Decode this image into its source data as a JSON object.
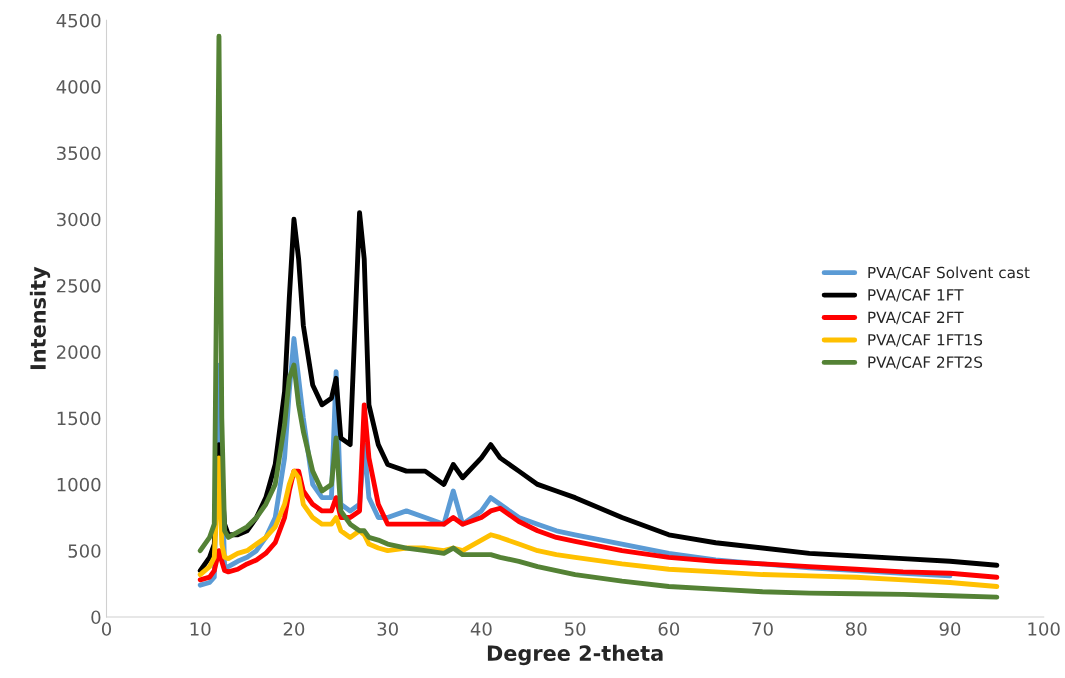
{
  "chart_data": {
    "type": "line",
    "xlabel": "Degree 2-theta",
    "ylabel": "Intensity",
    "x": [
      10,
      11,
      11.5,
      12,
      12.3,
      12.6,
      13,
      14,
      15,
      16,
      17,
      18,
      19,
      19.5,
      20,
      20.5,
      21,
      22,
      23,
      24,
      24.5,
      25,
      26,
      27,
      27.5,
      28,
      29,
      30,
      32,
      34,
      36,
      37,
      38,
      40,
      41,
      42,
      44,
      46,
      48,
      50,
      55,
      60,
      65,
      70,
      75,
      80,
      85,
      90,
      95
    ],
    "series": [
      {
        "name": "PVA/CAF Solvent cast",
        "color": "#5b9bd5",
        "values": [
          240,
          260,
          300,
          1900,
          null,
          380,
          380,
          420,
          450,
          500,
          600,
          750,
          1200,
          1700,
          2100,
          1800,
          1500,
          1000,
          900,
          900,
          1850,
          850,
          800,
          850,
          1300,
          900,
          750,
          750,
          800,
          750,
          700,
          950,
          700,
          800,
          900,
          850,
          750,
          700,
          650,
          620,
          550,
          480,
          430,
          null,
          370,
          350,
          330,
          310,
          null
        ]
      },
      {
        "name": "PVA/CAF 1FT",
        "color": "#000000",
        "values": [
          350,
          450,
          550,
          1300,
          null,
          700,
          620,
          620,
          650,
          750,
          900,
          1150,
          1700,
          2400,
          3000,
          2700,
          2200,
          1750,
          1600,
          1650,
          1800,
          1350,
          1300,
          3050,
          2700,
          1600,
          1300,
          1150,
          1100,
          1100,
          1000,
          1150,
          1050,
          1200,
          1300,
          1200,
          1100,
          1000,
          950,
          900,
          750,
          620,
          560,
          520,
          480,
          460,
          440,
          420,
          390
        ]
      },
      {
        "name": "PVA/CAF 2FT",
        "color": "#ff0000",
        "values": [
          280,
          300,
          350,
          500,
          420,
          350,
          340,
          360,
          400,
          430,
          480,
          560,
          750,
          950,
          1100,
          1100,
          950,
          850,
          800,
          800,
          900,
          750,
          750,
          800,
          1600,
          1200,
          850,
          700,
          700,
          700,
          700,
          750,
          700,
          750,
          800,
          820,
          720,
          650,
          600,
          570,
          500,
          450,
          420,
          400,
          380,
          360,
          340,
          330,
          300
        ]
      },
      {
        "name": "PVA/CAF 1FT1S",
        "color": "#ffc000",
        "values": [
          320,
          380,
          450,
          1200,
          550,
          450,
          440,
          480,
          500,
          550,
          600,
          680,
          850,
          1000,
          1100,
          1050,
          850,
          750,
          700,
          700,
          750,
          650,
          600,
          650,
          620,
          550,
          520,
          500,
          520,
          520,
          500,
          520,
          500,
          580,
          620,
          600,
          550,
          500,
          470,
          450,
          400,
          360,
          340,
          320,
          310,
          300,
          280,
          260,
          230
        ]
      },
      {
        "name": "PVA/CAF 2FT2S",
        "color": "#548235",
        "values": [
          500,
          600,
          700,
          4380,
          1500,
          650,
          600,
          640,
          680,
          750,
          850,
          1000,
          1450,
          1800,
          1900,
          1600,
          1400,
          1100,
          950,
          1000,
          1350,
          800,
          700,
          650,
          650,
          600,
          580,
          550,
          520,
          500,
          480,
          520,
          470,
          470,
          470,
          450,
          420,
          380,
          350,
          320,
          270,
          230,
          210,
          190,
          180,
          175,
          170,
          160,
          150
        ]
      }
    ],
    "xlim": [
      0,
      100
    ],
    "xticks": [
      0,
      10,
      20,
      30,
      40,
      50,
      60,
      70,
      80,
      90,
      100
    ],
    "ylim": [
      0,
      4500
    ],
    "yticks": [
      0,
      500,
      1000,
      1500,
      2000,
      2500,
      3000,
      3500,
      4000,
      4500
    ],
    "grid": false,
    "legend": "center right",
    "marker": "none",
    "line_style": "solid"
  }
}
